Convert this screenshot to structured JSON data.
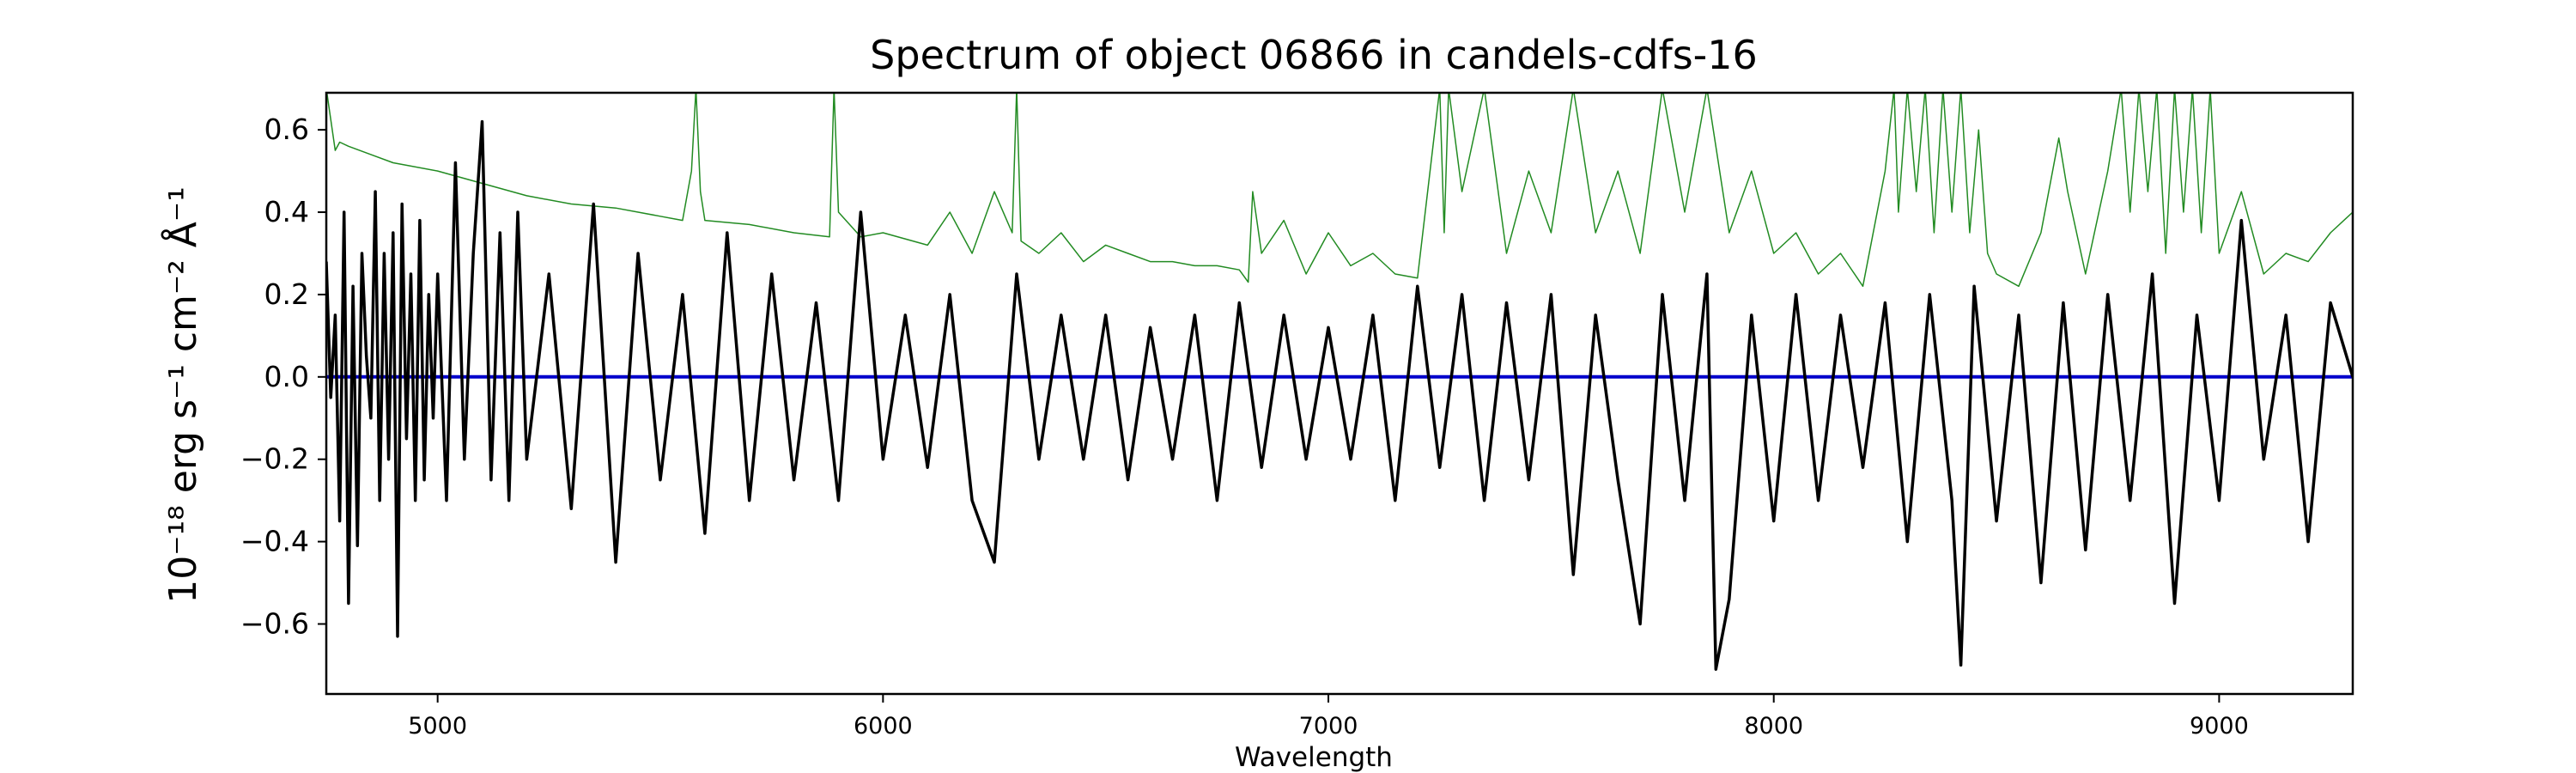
{
  "chart_data": {
    "type": "line",
    "title": "Spectrum of object 06866 in candels-cdfs-16",
    "xlabel": "Wavelength",
    "ylabel": "10⁻¹⁸ erg s⁻¹ cm⁻² Å⁻¹",
    "xlim": [
      4750,
      9300
    ],
    "ylim": [
      -0.77,
      0.69
    ],
    "xticks": [
      5000,
      6000,
      7000,
      8000,
      9000
    ],
    "xtick_labels": [
      "5000",
      "6000",
      "7000",
      "8000",
      "9000"
    ],
    "yticks": [
      -0.6,
      -0.4,
      -0.2,
      0.0,
      0.2,
      0.4,
      0.6
    ],
    "ytick_labels": [
      "−0.6",
      "−0.4",
      "−0.2",
      "0.0",
      "0.2",
      "0.4",
      "0.6"
    ],
    "grid": false,
    "colors": {
      "flux": "#000000",
      "error": "#228B22",
      "zero": "#0000cc"
    },
    "series": [
      {
        "role": "flux",
        "x": [
          4750,
          4760,
          4770,
          4780,
          4790,
          4800,
          4810,
          4820,
          4830,
          4840,
          4850,
          4860,
          4870,
          4880,
          4890,
          4900,
          4910,
          4920,
          4930,
          4940,
          4950,
          4960,
          4970,
          4980,
          4990,
          5000,
          5020,
          5040,
          5060,
          5080,
          5100,
          5120,
          5140,
          5160,
          5180,
          5200,
          5250,
          5300,
          5350,
          5400,
          5450,
          5500,
          5550,
          5600,
          5650,
          5700,
          5750,
          5800,
          5850,
          5900,
          5950,
          6000,
          6050,
          6100,
          6150,
          6200,
          6250,
          6300,
          6350,
          6400,
          6450,
          6500,
          6550,
          6600,
          6650,
          6700,
          6750,
          6800,
          6850,
          6900,
          6950,
          7000,
          7050,
          7100,
          7150,
          7200,
          7250,
          7300,
          7350,
          7400,
          7450,
          7500,
          7550,
          7600,
          7650,
          7700,
          7750,
          7800,
          7850,
          7870,
          7900,
          7950,
          8000,
          8050,
          8100,
          8150,
          8200,
          8250,
          8300,
          8350,
          8400,
          8420,
          8450,
          8500,
          8550,
          8600,
          8650,
          8700,
          8750,
          8800,
          8850,
          8900,
          8950,
          9000,
          9050,
          9100,
          9150,
          9200,
          9250,
          9300
        ],
        "y": [
          0.28,
          -0.05,
          0.15,
          -0.35,
          0.4,
          -0.55,
          0.22,
          -0.41,
          0.3,
          0.05,
          -0.1,
          0.45,
          -0.3,
          0.3,
          -0.2,
          0.35,
          -0.63,
          0.42,
          -0.15,
          0.25,
          -0.3,
          0.38,
          -0.25,
          0.2,
          -0.1,
          0.25,
          -0.3,
          0.52,
          -0.2,
          0.3,
          0.62,
          -0.25,
          0.35,
          -0.3,
          0.4,
          -0.2,
          0.25,
          -0.32,
          0.42,
          -0.45,
          0.3,
          -0.25,
          0.2,
          -0.38,
          0.35,
          -0.3,
          0.25,
          -0.25,
          0.18,
          -0.3,
          0.4,
          -0.2,
          0.15,
          -0.22,
          0.2,
          -0.3,
          -0.45,
          0.25,
          -0.2,
          0.15,
          -0.2,
          0.15,
          -0.25,
          0.12,
          -0.2,
          0.15,
          -0.3,
          0.18,
          -0.22,
          0.15,
          -0.2,
          0.12,
          -0.2,
          0.15,
          -0.3,
          0.22,
          -0.22,
          0.2,
          -0.3,
          0.18,
          -0.25,
          0.2,
          -0.48,
          0.15,
          -0.25,
          -0.6,
          0.2,
          -0.3,
          0.25,
          -0.71,
          -0.54,
          0.15,
          -0.35,
          0.2,
          -0.3,
          0.15,
          -0.22,
          0.18,
          -0.4,
          0.2,
          -0.3,
          -0.7,
          0.22,
          -0.35,
          0.15,
          -0.5,
          0.18,
          -0.42,
          0.2,
          -0.3,
          0.25,
          -0.55,
          0.15,
          -0.3,
          0.38,
          -0.2,
          0.15,
          -0.4,
          0.18,
          0.0
        ]
      },
      {
        "role": "error",
        "x": [
          4750,
          4770,
          4780,
          4800,
          4850,
          4900,
          5000,
          5100,
          5200,
          5300,
          5400,
          5500,
          5550,
          5570,
          5580,
          5590,
          5600,
          5700,
          5800,
          5880,
          5890,
          5900,
          5950,
          6000,
          6100,
          6150,
          6200,
          6250,
          6290,
          6300,
          6310,
          6350,
          6400,
          6450,
          6500,
          6550,
          6600,
          6650,
          6700,
          6750,
          6800,
          6820,
          6830,
          6850,
          6900,
          6950,
          7000,
          7050,
          7100,
          7150,
          7200,
          7250,
          7260,
          7270,
          7300,
          7350,
          7400,
          7450,
          7500,
          7550,
          7600,
          7650,
          7700,
          7750,
          7800,
          7850,
          7900,
          7950,
          8000,
          8050,
          8100,
          8150,
          8200,
          8250,
          8270,
          8280,
          8300,
          8320,
          8340,
          8360,
          8380,
          8400,
          8420,
          8440,
          8460,
          8480,
          8500,
          8550,
          8600,
          8640,
          8660,
          8700,
          8750,
          8780,
          8800,
          8820,
          8840,
          8860,
          8880,
          8900,
          8920,
          8940,
          8960,
          8980,
          9000,
          9050,
          9100,
          9150,
          9200,
          9250,
          9300
        ],
        "y": [
          0.7,
          0.55,
          0.57,
          0.56,
          0.54,
          0.52,
          0.5,
          0.47,
          0.44,
          0.42,
          0.41,
          0.39,
          0.38,
          0.5,
          0.7,
          0.45,
          0.38,
          0.37,
          0.35,
          0.34,
          0.7,
          0.4,
          0.34,
          0.35,
          0.32,
          0.4,
          0.3,
          0.45,
          0.35,
          0.7,
          0.33,
          0.3,
          0.35,
          0.28,
          0.32,
          0.3,
          0.28,
          0.28,
          0.27,
          0.27,
          0.26,
          0.23,
          0.45,
          0.3,
          0.38,
          0.25,
          0.35,
          0.27,
          0.3,
          0.25,
          0.24,
          0.7,
          0.35,
          0.7,
          0.45,
          0.7,
          0.3,
          0.5,
          0.35,
          0.7,
          0.35,
          0.5,
          0.3,
          0.7,
          0.4,
          0.7,
          0.35,
          0.5,
          0.3,
          0.35,
          0.25,
          0.3,
          0.22,
          0.5,
          0.7,
          0.4,
          0.7,
          0.45,
          0.7,
          0.35,
          0.7,
          0.4,
          0.7,
          0.35,
          0.6,
          0.3,
          0.25,
          0.22,
          0.35,
          0.58,
          0.45,
          0.25,
          0.5,
          0.7,
          0.4,
          0.7,
          0.45,
          0.7,
          0.3,
          0.7,
          0.4,
          0.7,
          0.35,
          0.7,
          0.3,
          0.45,
          0.25,
          0.3,
          0.28,
          0.35,
          0.4
        ]
      },
      {
        "role": "zero",
        "x": [
          4750,
          9300
        ],
        "y": [
          0.0,
          0.0
        ]
      }
    ]
  }
}
